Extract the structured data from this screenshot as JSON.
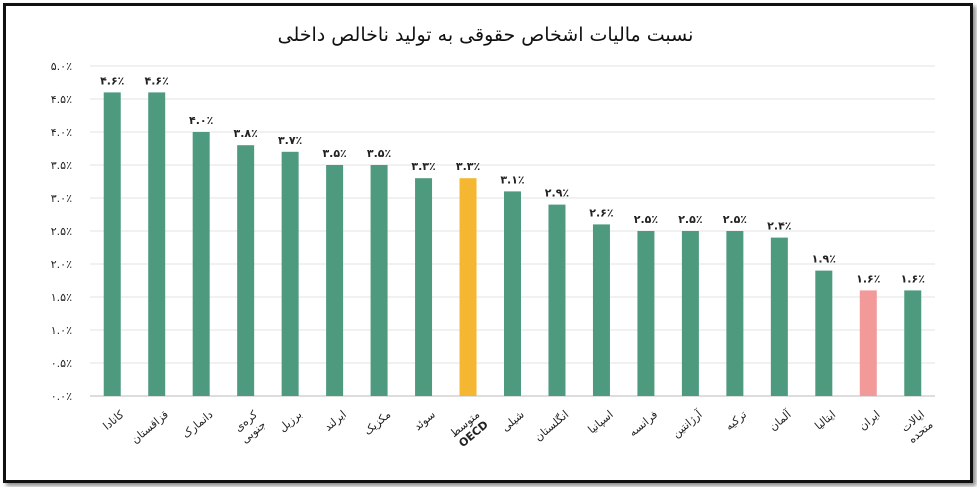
{
  "chart_data": {
    "type": "bar",
    "title": "نسبت مالیات اشخاص حقوقی به تولید ناخالص داخلی",
    "ylim": [
      0,
      5
    ],
    "yticks": [
      "۰.۰٪",
      "۰.۵٪",
      "۱.۰٪",
      "۱.۵٪",
      "۲.۰٪",
      "۲.۵٪",
      "۳.۰٪",
      "۳.۵٪",
      "۴.۰٪",
      "۴.۵٪",
      "۵.۰٪"
    ],
    "grid": true,
    "categories": [
      [
        "کانادا"
      ],
      [
        "قزاقستان"
      ],
      [
        "دانمارک"
      ],
      [
        "کره‌ی",
        "جنوبی"
      ],
      [
        "برزیل"
      ],
      [
        "ایرلند"
      ],
      [
        "مکزیک"
      ],
      [
        "سوئد"
      ],
      [
        "متوسط",
        "OECD"
      ],
      [
        "شیلی"
      ],
      [
        "انگلستان"
      ],
      [
        "اسپانیا"
      ],
      [
        "فرانسه"
      ],
      [
        "آرژانتین"
      ],
      [
        "ترکیه"
      ],
      [
        "آلمان"
      ],
      [
        "ایتالیا"
      ],
      [
        "ایران"
      ],
      [
        "ایالات",
        "متحده"
      ]
    ],
    "values": [
      4.6,
      4.6,
      4.0,
      3.8,
      3.7,
      3.5,
      3.5,
      3.3,
      3.3,
      3.1,
      2.9,
      2.6,
      2.5,
      2.5,
      2.5,
      2.4,
      1.9,
      1.6,
      1.6
    ],
    "value_labels": [
      "۴.۶٪",
      "۴.۶٪",
      "۴.۰٪",
      "۳.۸٪",
      "۳.۷٪",
      "۳.۵٪",
      "۳.۵٪",
      "۳.۳٪",
      "۳.۳٪",
      "۳.۱٪",
      "۲.۹٪",
      "۲.۶٪",
      "۲.۵٪",
      "۲.۵٪",
      "۲.۵٪",
      "۲.۴٪",
      "۱.۹٪",
      "۱.۶٪",
      "۱.۶٪"
    ],
    "bar_colors": [
      "#4e9a7f",
      "#4e9a7f",
      "#4e9a7f",
      "#4e9a7f",
      "#4e9a7f",
      "#4e9a7f",
      "#4e9a7f",
      "#4e9a7f",
      "#f5b731",
      "#4e9a7f",
      "#4e9a7f",
      "#4e9a7f",
      "#4e9a7f",
      "#4e9a7f",
      "#4e9a7f",
      "#4e9a7f",
      "#4e9a7f",
      "#f29a9a",
      "#4e9a7f"
    ]
  }
}
